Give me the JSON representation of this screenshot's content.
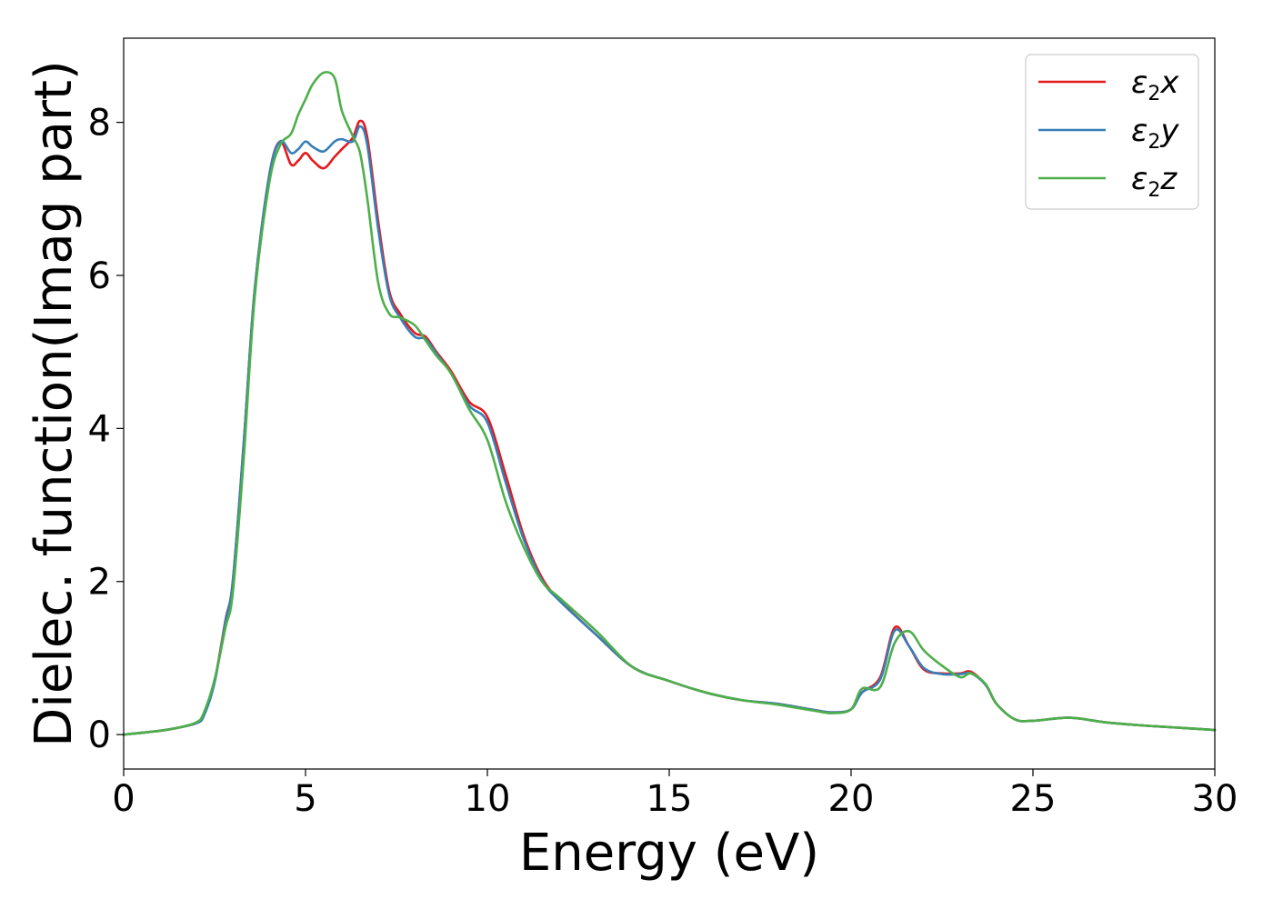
{
  "chart_data": {
    "type": "line",
    "xlabel": "Energy (eV)",
    "ylabel": "Dielec. function(Imag part)",
    "xlim": [
      0,
      30
    ],
    "ylim": [
      -0.45,
      9.1
    ],
    "xticks": [
      0,
      5,
      10,
      15,
      20,
      25,
      30
    ],
    "yticks": [
      0,
      2,
      4,
      6,
      8
    ],
    "grid": false,
    "legend_position": "top-right",
    "series": [
      {
        "name": "ε2x",
        "legend": {
          "base": "ε",
          "sub": "2",
          "var": "x"
        },
        "color": "#e41a1c",
        "x": [
          0,
          1,
          1.5,
          2,
          2.2,
          2.5,
          2.8,
          3,
          3.3,
          3.6,
          4,
          4.3,
          4.6,
          4.8,
          5,
          5.2,
          5.5,
          5.8,
          6,
          6.3,
          6.5,
          6.7,
          7,
          7.3,
          7.6,
          8,
          8.3,
          8.6,
          9,
          9.5,
          10,
          10.5,
          11,
          11.5,
          12,
          13,
          14,
          15,
          16,
          17,
          18,
          19,
          19.5,
          20,
          20.3,
          20.8,
          21.2,
          21.6,
          22,
          22.5,
          23,
          23.3,
          23.7,
          24,
          24.5,
          25,
          26,
          27,
          28,
          29,
          30
        ],
        "y": [
          0,
          0.05,
          0.09,
          0.15,
          0.25,
          0.7,
          1.5,
          2.0,
          3.8,
          5.8,
          7.3,
          7.75,
          7.45,
          7.5,
          7.6,
          7.5,
          7.4,
          7.55,
          7.65,
          7.8,
          8.02,
          7.8,
          6.7,
          5.8,
          5.5,
          5.25,
          5.2,
          5.0,
          4.75,
          4.35,
          4.15,
          3.4,
          2.6,
          2.05,
          1.75,
          1.3,
          0.88,
          0.7,
          0.55,
          0.45,
          0.4,
          0.32,
          0.29,
          0.33,
          0.55,
          0.75,
          1.4,
          1.15,
          0.85,
          0.8,
          0.8,
          0.82,
          0.65,
          0.4,
          0.2,
          0.18,
          0.22,
          0.16,
          0.12,
          0.09,
          0.06
        ]
      },
      {
        "name": "ε2y",
        "legend": {
          "base": "ε",
          "sub": "2",
          "var": "y"
        },
        "color": "#377eb8",
        "x": [
          0,
          1,
          1.5,
          2,
          2.2,
          2.5,
          2.8,
          3,
          3.3,
          3.6,
          4,
          4.3,
          4.6,
          4.8,
          5,
          5.2,
          5.5,
          5.8,
          6,
          6.3,
          6.5,
          6.7,
          7,
          7.3,
          7.6,
          8,
          8.3,
          8.6,
          9,
          9.5,
          10,
          10.5,
          11,
          11.5,
          12,
          13,
          14,
          15,
          16,
          17,
          18,
          19,
          19.5,
          20,
          20.3,
          20.8,
          21.2,
          21.6,
          22,
          22.5,
          23,
          23.3,
          23.7,
          24,
          24.5,
          25,
          26,
          27,
          28,
          29,
          30
        ],
        "y": [
          0,
          0.05,
          0.09,
          0.15,
          0.24,
          0.68,
          1.48,
          2.0,
          3.8,
          5.8,
          7.3,
          7.75,
          7.6,
          7.65,
          7.75,
          7.68,
          7.62,
          7.75,
          7.78,
          7.75,
          7.95,
          7.7,
          6.6,
          5.75,
          5.45,
          5.2,
          5.17,
          4.98,
          4.72,
          4.3,
          4.08,
          3.3,
          2.55,
          2.02,
          1.74,
          1.3,
          0.88,
          0.7,
          0.55,
          0.45,
          0.4,
          0.32,
          0.29,
          0.33,
          0.55,
          0.72,
          1.36,
          1.15,
          0.87,
          0.79,
          0.79,
          0.8,
          0.65,
          0.4,
          0.2,
          0.18,
          0.22,
          0.16,
          0.12,
          0.09,
          0.06
        ]
      },
      {
        "name": "ε2z",
        "legend": {
          "base": "ε",
          "sub": "2",
          "var": "z"
        },
        "color": "#4daf4a",
        "x": [
          0,
          1,
          1.5,
          2,
          2.2,
          2.5,
          2.8,
          3,
          3.3,
          3.6,
          4,
          4.3,
          4.6,
          4.8,
          5,
          5.2,
          5.5,
          5.8,
          6,
          6.3,
          6.5,
          6.7,
          7,
          7.3,
          7.6,
          8,
          8.3,
          8.6,
          9,
          9.5,
          10,
          10.5,
          11,
          11.5,
          12,
          13,
          14,
          15,
          16,
          17,
          18,
          19,
          19.5,
          20,
          20.3,
          20.8,
          21.2,
          21.6,
          22,
          22.5,
          23,
          23.3,
          23.7,
          24,
          24.5,
          25,
          26,
          27,
          28,
          29,
          30
        ],
        "y": [
          0,
          0.05,
          0.09,
          0.16,
          0.28,
          0.72,
          1.4,
          1.85,
          3.6,
          5.7,
          7.2,
          7.7,
          7.85,
          8.1,
          8.3,
          8.5,
          8.65,
          8.58,
          8.15,
          7.82,
          7.6,
          7.0,
          5.9,
          5.5,
          5.45,
          5.35,
          5.15,
          4.95,
          4.72,
          4.25,
          3.85,
          3.05,
          2.45,
          2.0,
          1.78,
          1.35,
          0.88,
          0.7,
          0.55,
          0.45,
          0.39,
          0.31,
          0.28,
          0.33,
          0.6,
          0.62,
          1.2,
          1.35,
          1.1,
          0.9,
          0.75,
          0.8,
          0.66,
          0.4,
          0.2,
          0.18,
          0.22,
          0.16,
          0.12,
          0.09,
          0.06
        ]
      }
    ]
  }
}
